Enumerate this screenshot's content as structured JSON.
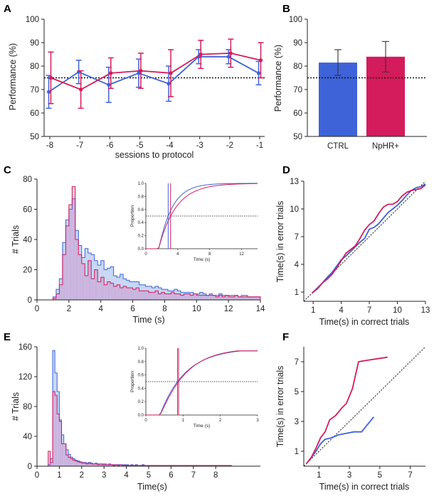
{
  "colors": {
    "ctrl": "#3e63d9",
    "nphr": "#d41b5c",
    "ctrl_fill": "#c7d7f4",
    "overlap_fill": "#c9b4de",
    "nphr_fill": "#f2c6d6"
  },
  "chart_data": [
    {
      "panel": "A",
      "type": "line",
      "xlabel": "sessions to protocol",
      "ylabel": "Performance (%)",
      "categories": [
        "-8",
        "-7",
        "-6",
        "-5",
        "-4",
        "-3",
        "-2",
        "-1"
      ],
      "ylim": [
        50,
        100
      ],
      "yticks": [
        50,
        60,
        70,
        80,
        90,
        100
      ],
      "reference_line": 75,
      "series": [
        {
          "name": "CTRL",
          "values": [
            69,
            77.5,
            72,
            77,
            72.5,
            84,
            84,
            77
          ],
          "err": [
            7,
            5,
            7.5,
            6,
            7.5,
            3,
            3,
            5
          ]
        },
        {
          "name": "NpHR+",
          "values": [
            75,
            70,
            77,
            78,
            77,
            85,
            85.5,
            82.5
          ],
          "err": [
            11,
            8,
            6.5,
            7.5,
            10,
            6,
            6,
            7.5
          ]
        }
      ]
    },
    {
      "panel": "B",
      "type": "bar",
      "ylabel": "Performance (%)",
      "categories": [
        "CTRL",
        "NpHR+"
      ],
      "values": [
        81.5,
        84
      ],
      "err": [
        5.5,
        6.5
      ],
      "ylim": [
        50,
        100
      ],
      "yticks": [
        50,
        60,
        70,
        80,
        90,
        100
      ],
      "reference_line": 75
    },
    {
      "panel": "C",
      "type": "histogram",
      "xlabel": "Time (s)",
      "ylabel": "# Trials",
      "xlim": [
        0,
        14
      ],
      "ylim": [
        0,
        80
      ],
      "xticks": [
        0,
        2,
        4,
        6,
        8,
        10,
        12,
        14
      ],
      "yticks": [
        0,
        20,
        40,
        60,
        80
      ],
      "bin_start": 1,
      "bin_width": 0.2,
      "series": [
        {
          "name": "CTRL",
          "values": [
            2,
            7,
            14,
            38,
            53,
            60,
            67,
            46,
            36,
            28,
            34,
            31,
            30,
            26,
            23,
            26,
            20,
            21,
            22,
            16,
            15,
            17,
            14,
            13,
            12,
            12,
            12,
            10,
            10,
            9,
            9,
            8,
            9,
            8,
            7,
            7,
            6,
            6,
            7,
            6,
            5,
            5,
            5,
            5,
            4,
            4,
            5,
            4,
            3,
            4,
            3,
            3,
            4,
            3,
            3,
            3,
            3,
            3,
            2,
            3,
            3,
            2,
            2,
            2,
            2
          ]
        },
        {
          "name": "NpHR+",
          "values": [
            1,
            4,
            10,
            30,
            49,
            63,
            75,
            40,
            30,
            24,
            16,
            26,
            14,
            20,
            12,
            15,
            10,
            12,
            11,
            9,
            10,
            8,
            9,
            8,
            8,
            7,
            8,
            6,
            6,
            6,
            5,
            5,
            6,
            4,
            5,
            4,
            4,
            5,
            4,
            4,
            3,
            4,
            4,
            3,
            4,
            3,
            3,
            3,
            3,
            3,
            3,
            2,
            3,
            2,
            3,
            2,
            2,
            3,
            2,
            2,
            2,
            2,
            2,
            2,
            2
          ]
        }
      ],
      "inset": {
        "type": "line",
        "xlabel": "Time (s)",
        "ylabel": "Proportion",
        "xlim": [
          0,
          14
        ],
        "ylim": [
          0,
          1
        ],
        "xticks": [
          0,
          4,
          8,
          12
        ],
        "yticks": [
          0,
          0.2,
          0.4,
          0.6,
          0.8,
          1.0
        ],
        "ytick_labels": [
          "0.0",
          "0.2",
          "0.4",
          "0.6",
          "0.8",
          "1.0"
        ],
        "reference_line": 0.5,
        "medians": [
          {
            "name": "CTRL",
            "value": 2.8
          },
          {
            "name": "NpHR+",
            "value": 3.1
          }
        ]
      }
    },
    {
      "panel": "D",
      "type": "line",
      "xlabel": "Time(s) in correct trials",
      "ylabel": "Time(s) in error trials",
      "xlim": [
        0,
        13
      ],
      "ylim": [
        0,
        13
      ],
      "xticks": [
        1,
        4,
        7,
        10,
        13
      ],
      "yticks": [
        1,
        4,
        7,
        10,
        13
      ],
      "diagonal": true,
      "series": [
        {
          "name": "CTRL",
          "x": [
            0.9,
            1.5,
            2,
            2.5,
            3,
            3.5,
            4,
            4.5,
            5,
            5.5,
            6,
            6.5,
            7,
            7.5,
            8,
            8.5,
            9,
            9.5,
            10,
            10.5,
            11,
            11.5,
            12,
            12.5,
            13
          ],
          "y": [
            0.9,
            1.5,
            2,
            2.6,
            3.1,
            3.8,
            4.5,
            4.9,
            5.4,
            5.9,
            6.4,
            6.8,
            7.8,
            8,
            8.4,
            9,
            9.6,
            10,
            10.4,
            10.9,
            11.5,
            12,
            12.3,
            12.4,
            12.7
          ]
        },
        {
          "name": "NpHR+",
          "x": [
            0.9,
            1.5,
            2,
            2.5,
            3,
            3.5,
            4,
            4.5,
            5,
            5.5,
            6,
            6.5,
            7,
            7.5,
            8,
            8.5,
            9,
            9.5,
            10,
            10.5,
            11,
            11.5,
            12,
            12.5,
            13
          ],
          "y": [
            0.9,
            1.4,
            2,
            2.4,
            2.9,
            3.6,
            4.4,
            5.2,
            5.6,
            6,
            6.8,
            7.7,
            8.3,
            8.7,
            9.5,
            10.2,
            10.5,
            10.5,
            10.8,
            11.4,
            11.8,
            12,
            12.1,
            12.2,
            12.6
          ]
        }
      ]
    },
    {
      "panel": "E",
      "type": "histogram",
      "xlabel": "Time(s)",
      "ylabel": "# Trials",
      "xlim": [
        0,
        10
      ],
      "ylim": [
        0,
        160
      ],
      "xticks": [
        0,
        1,
        2,
        3,
        4,
        5,
        6,
        7,
        8
      ],
      "yticks": [
        0,
        40,
        80,
        120,
        160
      ],
      "bin_start": 0.2,
      "bin_width": 0.1,
      "series": [
        {
          "name": "CTRL",
          "values": [
            0,
            0,
            0,
            2,
            10,
            155,
            125,
            100,
            62,
            42,
            30,
            22,
            16,
            12,
            10,
            8,
            7,
            6,
            5,
            5,
            4,
            5,
            4,
            3,
            4,
            3,
            3,
            3,
            3,
            2,
            3,
            2,
            2,
            2,
            2,
            2,
            2,
            2,
            2,
            1,
            2,
            1,
            2,
            1,
            1,
            2,
            1,
            1,
            1,
            1,
            1,
            1,
            1,
            1,
            1,
            1,
            1,
            1,
            1,
            1,
            1,
            1,
            1,
            1,
            1,
            1,
            1,
            1,
            1,
            1,
            1,
            1,
            1,
            1,
            1,
            1,
            1,
            1,
            1,
            1,
            1,
            1,
            1,
            1,
            1
          ]
        },
        {
          "name": "NpHR+",
          "values": [
            0,
            0,
            0,
            20,
            5,
            100,
            95,
            70,
            60,
            30,
            30,
            15,
            12,
            10,
            8,
            7,
            6,
            5,
            4,
            4,
            3,
            4,
            3,
            3,
            3,
            2,
            3,
            2,
            2,
            2,
            2,
            2,
            1,
            2,
            1,
            2,
            1,
            1,
            1,
            1,
            1,
            1,
            1,
            1,
            1,
            1,
            1,
            1,
            1,
            1,
            1,
            1,
            1,
            1,
            1,
            1,
            1,
            1,
            1,
            1,
            1,
            1,
            1,
            1,
            1,
            1,
            1,
            1,
            1,
            1,
            1,
            1,
            1,
            1,
            1,
            1,
            1,
            1,
            1,
            1,
            1,
            1,
            1,
            1,
            1
          ]
        }
      ],
      "inset": {
        "type": "line",
        "xlabel": "Time (s)",
        "ylabel": "Proportion",
        "xlim": [
          0,
          3
        ],
        "ylim": [
          0,
          1
        ],
        "xticks": [
          0,
          1,
          2,
          3
        ],
        "yticks": [
          0,
          0.2,
          0.4,
          0.6,
          0.8,
          1.0
        ],
        "ytick_labels": [
          "0.0",
          "0.2",
          "0.4",
          "0.6",
          "0.8",
          "1.0"
        ],
        "reference_line": 0.5,
        "medians": [
          {
            "name": "CTRL",
            "value": 0.85
          },
          {
            "name": "NpHR+",
            "value": 0.88
          }
        ]
      }
    },
    {
      "panel": "F",
      "type": "line",
      "xlabel": "Time(s) in correct trials",
      "ylabel": "Time(s) in error trials",
      "xlim": [
        0,
        8
      ],
      "ylim": [
        0,
        8
      ],
      "xticks": [
        1,
        3,
        5,
        7
      ],
      "yticks": [
        1,
        3,
        5,
        7
      ],
      "diagonal": true,
      "series": [
        {
          "name": "CTRL",
          "x": [
            0.2,
            0.5,
            0.8,
            1.1,
            1.4,
            1.8,
            2.3,
            2.8,
            3.3,
            3.8,
            4.2,
            4.6
          ],
          "y": [
            0.2,
            0.6,
            1.0,
            1.5,
            1.8,
            1.9,
            2.1,
            2.2,
            2.3,
            2.3,
            2.8,
            3.3
          ]
        },
        {
          "name": "NpHR+",
          "x": [
            0.2,
            0.5,
            0.8,
            1.1,
            1.4,
            1.7,
            2.1,
            2.5,
            2.8,
            3.2,
            3.6,
            4.2,
            5.5
          ],
          "y": [
            0.2,
            0.6,
            1.2,
            1.9,
            2.3,
            3.1,
            3.4,
            3.9,
            4.2,
            5.2,
            7.0,
            7.1,
            7.3
          ]
        }
      ]
    }
  ]
}
